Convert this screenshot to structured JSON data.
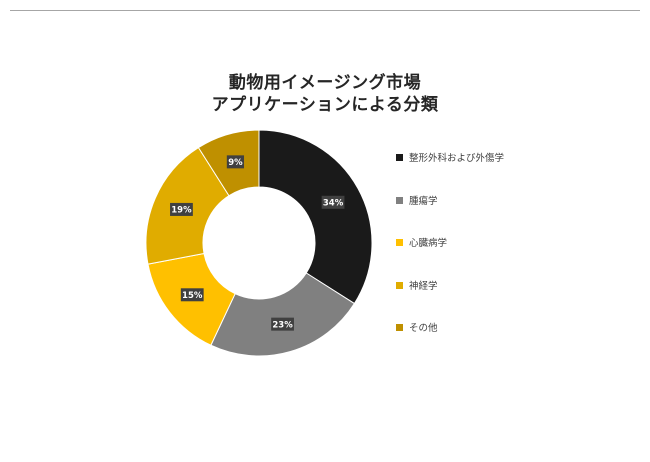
{
  "chart_data": {
    "type": "pie",
    "variant": "donut",
    "title_lines": [
      "動物用イメージング市場",
      "アプリケーションによる分類"
    ],
    "categories": [
      "整形外科および外傷学",
      "腫瘍学",
      "心臓病学",
      "神経学",
      "その他"
    ],
    "values": [
      34,
      23,
      15,
      19,
      9
    ],
    "data_labels": [
      "34%",
      "23%",
      "15%",
      "19%",
      "9%"
    ],
    "colors": [
      "#1a1a1a",
      "#808080",
      "#ffc000",
      "#e0ac00",
      "#bf9000"
    ],
    "legend_position": "right",
    "start_angle_deg": 0,
    "direction": "clockwise"
  }
}
